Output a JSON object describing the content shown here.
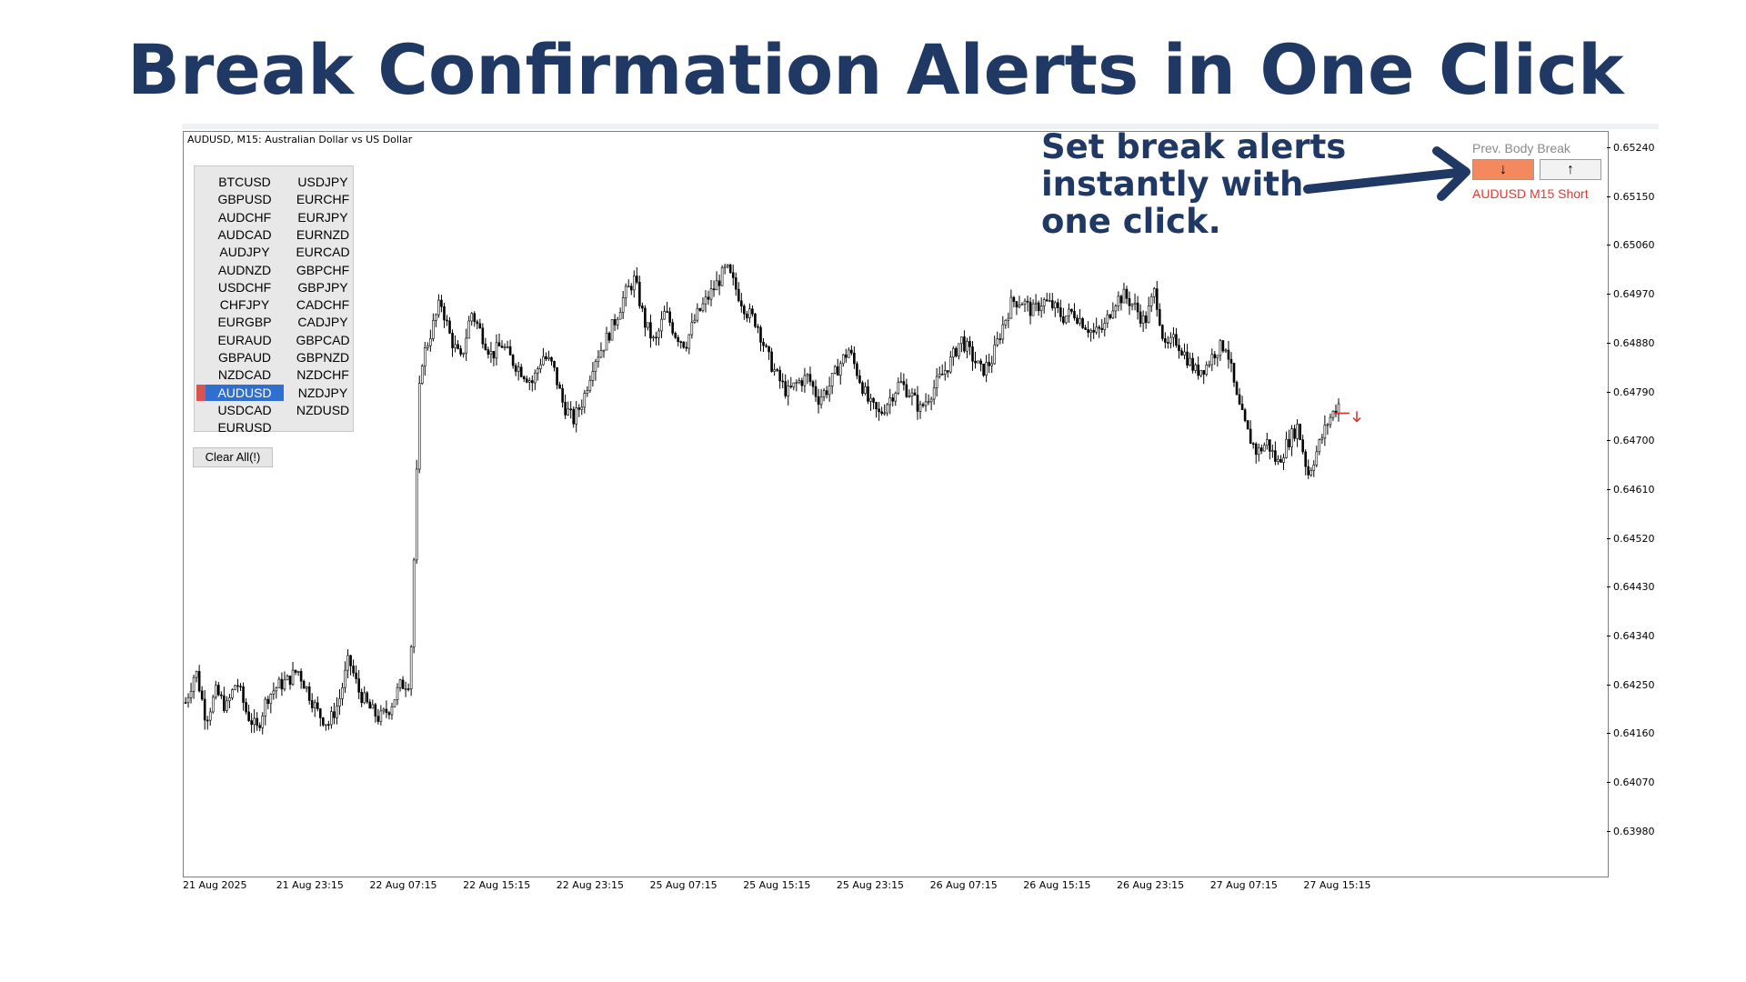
{
  "slide": {
    "title": "Break Confirmation Alerts in One Click",
    "callout_lines": [
      "Set break alerts",
      "instantly with",
      "one click."
    ],
    "title_color": "#1f3864"
  },
  "chart": {
    "caption": "AUDUSD, M15:  Australian Dollar vs US Dollar",
    "price_ticks": [
      "0.65240",
      "0.65150",
      "0.65060",
      "0.64970",
      "0.64880",
      "0.64790",
      "0.64700",
      "0.64610",
      "0.64520",
      "0.64430",
      "0.64340",
      "0.64250",
      "0.64160",
      "0.64070",
      "0.63980"
    ],
    "time_ticks": [
      "21 Aug 2025",
      "21 Aug 23:15",
      "22 Aug 07:15",
      "22 Aug 15:15",
      "22 Aug 23:15",
      "25 Aug 07:15",
      "25 Aug 15:15",
      "25 Aug 23:15",
      "26 Aug 07:15",
      "26 Aug 15:15",
      "26 Aug 23:15",
      "27 Aug 07:15",
      "27 Aug 15:15"
    ],
    "price_series": [
      0.6422,
      0.6428,
      0.6419,
      0.6424,
      0.6421,
      0.6426,
      0.642,
      0.6417,
      0.6423,
      0.6425,
      0.6426,
      0.6428,
      0.6424,
      0.642,
      0.6418,
      0.6422,
      0.643,
      0.6424,
      0.6421,
      0.6419,
      0.6421,
      0.6425,
      0.6426,
      0.6484,
      0.649,
      0.6496,
      0.6489,
      0.6485,
      0.6494,
      0.649,
      0.6486,
      0.6488,
      0.6485,
      0.6483,
      0.6481,
      0.6486,
      0.6484,
      0.6477,
      0.6474,
      0.6478,
      0.6485,
      0.6488,
      0.6492,
      0.6497,
      0.65,
      0.6492,
      0.6488,
      0.6494,
      0.649,
      0.6488,
      0.6493,
      0.6496,
      0.6499,
      0.6502,
      0.6498,
      0.6494,
      0.6492,
      0.6486,
      0.6482,
      0.6479,
      0.6481,
      0.6482,
      0.6478,
      0.648,
      0.6484,
      0.6487,
      0.6482,
      0.6477,
      0.6475,
      0.6478,
      0.6481,
      0.6479,
      0.6476,
      0.6479,
      0.6482,
      0.6485,
      0.6489,
      0.6486,
      0.6483,
      0.6485,
      0.6491,
      0.6496,
      0.6496,
      0.6494,
      0.6496,
      0.6495,
      0.6493,
      0.6494,
      0.6492,
      0.649,
      0.6491,
      0.6496,
      0.6497,
      0.6495,
      0.6492,
      0.6498,
      0.6487,
      0.6489,
      0.6486,
      0.6483,
      0.6484,
      0.6487,
      0.6488,
      0.6478,
      0.6472,
      0.6468,
      0.647,
      0.6466,
      0.647,
      0.6473,
      0.6464,
      0.6469,
      0.6474,
      0.6477
    ],
    "alert_direction": "down"
  },
  "symbols": [
    {
      "label": "BTCUSD",
      "col": 0
    },
    {
      "label": "USDJPY",
      "col": 1
    },
    {
      "label": "GBPUSD",
      "col": 0
    },
    {
      "label": "EURCHF",
      "col": 1
    },
    {
      "label": "AUDCHF",
      "col": 0
    },
    {
      "label": "EURJPY",
      "col": 1
    },
    {
      "label": "AUDCAD",
      "col": 0
    },
    {
      "label": "EURNZD",
      "col": 1
    },
    {
      "label": "AUDJPY",
      "col": 0
    },
    {
      "label": "EURCAD",
      "col": 1
    },
    {
      "label": "AUDNZD",
      "col": 0
    },
    {
      "label": "GBPCHF",
      "col": 1
    },
    {
      "label": "USDCHF",
      "col": 0
    },
    {
      "label": "GBPJPY",
      "col": 1
    },
    {
      "label": "CHFJPY",
      "col": 0
    },
    {
      "label": "CADCHF",
      "col": 1
    },
    {
      "label": "EURGBP",
      "col": 0
    },
    {
      "label": "CADJPY",
      "col": 1
    },
    {
      "label": "EURAUD",
      "col": 0
    },
    {
      "label": "GBPCAD",
      "col": 1
    },
    {
      "label": "GBPAUD",
      "col": 0
    },
    {
      "label": "GBPNZD",
      "col": 1
    },
    {
      "label": "NZDCAD",
      "col": 0
    },
    {
      "label": "NZDCHF",
      "col": 1
    },
    {
      "label": "AUDUSD",
      "col": 0,
      "selected": true
    },
    {
      "label": "NZDJPY",
      "col": 1
    },
    {
      "label": "USDCAD",
      "col": 0
    },
    {
      "label": "NZDUSD",
      "col": 1
    },
    {
      "label": "EURUSD",
      "col": 0
    }
  ],
  "panel": {
    "clear_button": "Clear All(!)",
    "prev_body_break_label": "Prev. Body Break",
    "down_button": "↓",
    "up_button": "↑",
    "status": "AUDUSD M15 Short",
    "down_button_color": "#f4895f",
    "status_color": "#e03a2f"
  }
}
